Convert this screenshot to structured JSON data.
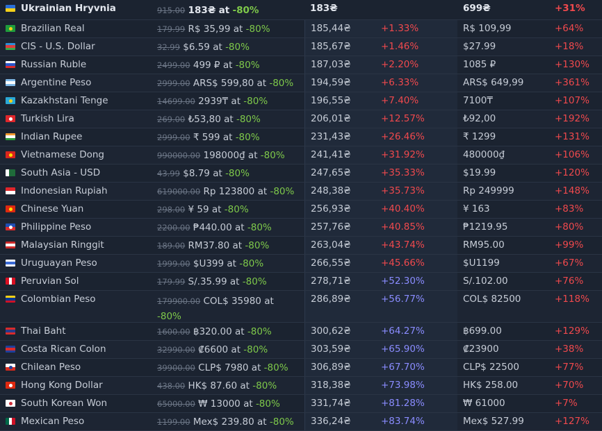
{
  "header": {
    "country": "Ukrainian Hryvnia",
    "flag": {
      "type": "h2",
      "c1": "#2a6fd6",
      "c2": "#f5d11a"
    },
    "orig": "915.00",
    "price": "183₴",
    "at": "at",
    "disc": "-80%",
    "conv": "183₴",
    "diff": "",
    "price2": "699₴",
    "diff2": "+31%"
  },
  "rows": [
    {
      "country": "Brazilian Real",
      "flag": {
        "type": "h2",
        "c1": "#1f9c3c",
        "c2": "#1f9c3c",
        "dot": "#f2d21b"
      },
      "orig": "179.99",
      "price": "R$ 35,99",
      "at": "at",
      "disc": "-80%",
      "conv": "185,44₴",
      "diff": "+1.33%",
      "diffColor": "red",
      "price2": "R$ 109,99",
      "diff2": "+64%"
    },
    {
      "country": "CIS - U.S. Dollar",
      "flag": {
        "type": "h3",
        "c1": "#2e8ed6",
        "c2": "#e03a3a",
        "c3": "#3aa64a"
      },
      "orig": "32.99",
      "price": "$6.59",
      "at": "at",
      "disc": "-80%",
      "conv": "185,67₴",
      "diff": "+1.46%",
      "diffColor": "red",
      "price2": "$27.99",
      "diff2": "+18%"
    },
    {
      "country": "Russian Ruble",
      "flag": {
        "type": "h3",
        "c1": "#ffffff",
        "c2": "#2a55c9",
        "c3": "#d92b2b"
      },
      "orig": "2499.00",
      "price": "499 ₽",
      "at": "at",
      "disc": "-80%",
      "conv": "187,03₴",
      "diff": "+2.20%",
      "diffColor": "red",
      "price2": "1085 ₽",
      "diff2": "+130%"
    },
    {
      "country": "Argentine Peso",
      "flag": {
        "type": "h3",
        "c1": "#7fb8e6",
        "c2": "#ffffff",
        "c3": "#7fb8e6"
      },
      "orig": "2999.00",
      "price": "ARS$ 599,80",
      "at": "at",
      "disc": "-80%",
      "conv": "194,59₴",
      "diff": "+6.33%",
      "diffColor": "red",
      "price2": "ARS$ 649,99",
      "diff2": "+361%"
    },
    {
      "country": "Kazakhstani Tenge",
      "flag": {
        "type": "h2",
        "c1": "#2aa8d6",
        "c2": "#2aa8d6",
        "dot": "#f2d21b"
      },
      "orig": "14699.00",
      "price": "2939₸",
      "at": "at",
      "disc": "-80%",
      "conv": "196,55₴",
      "diff": "+7.40%",
      "diffColor": "red",
      "price2": "7100₸",
      "diff2": "+107%"
    },
    {
      "country": "Turkish Lira",
      "flag": {
        "type": "h2",
        "c1": "#e0262b",
        "c2": "#e0262b",
        "dot": "#ffffff"
      },
      "orig": "269.00",
      "price": "₺53,80",
      "at": "at",
      "disc": "-80%",
      "conv": "206,01₴",
      "diff": "+12.57%",
      "diffColor": "red",
      "price2": "₺92,00",
      "diff2": "+192%"
    },
    {
      "country": "Indian Rupee",
      "flag": {
        "type": "h3",
        "c1": "#f29a2e",
        "c2": "#ffffff",
        "c3": "#2a9a3a"
      },
      "orig": "2999.00",
      "price": "₹ 599",
      "at": "at",
      "disc": "-80%",
      "conv": "231,43₴",
      "diff": "+26.46%",
      "diffColor": "red",
      "price2": "₹ 1299",
      "diff2": "+131%"
    },
    {
      "country": "Vietnamese Dong",
      "flag": {
        "type": "h2",
        "c1": "#da251d",
        "c2": "#da251d",
        "dot": "#ffdd00"
      },
      "orig": "990000.00",
      "price": "198000₫",
      "at": "at",
      "disc": "-80%",
      "conv": "241,41₴",
      "diff": "+31.92%",
      "diffColor": "red",
      "price2": "480000₫",
      "diff2": "+106%"
    },
    {
      "country": "South Asia - USD",
      "flag": {
        "type": "v3",
        "c1": "#ffffff",
        "c2": "#1f6b3a",
        "c3": "#1f6b3a"
      },
      "orig": "43.99",
      "price": "$8.79",
      "at": "at",
      "disc": "-80%",
      "conv": "247,65₴",
      "diff": "+35.33%",
      "diffColor": "red",
      "price2": "$19.99",
      "diff2": "+120%"
    },
    {
      "country": "Indonesian Rupiah",
      "flag": {
        "type": "h2",
        "c1": "#e0262b",
        "c2": "#ffffff"
      },
      "orig": "619000.00",
      "price": "Rp 123800",
      "at": "at",
      "disc": "-80%",
      "conv": "248,38₴",
      "diff": "+35.73%",
      "diffColor": "red",
      "price2": "Rp 249999",
      "diff2": "+148%"
    },
    {
      "country": "Chinese Yuan",
      "flag": {
        "type": "h2",
        "c1": "#de2910",
        "c2": "#de2910",
        "dot": "#ffde00"
      },
      "orig": "298.00",
      "price": "¥ 59",
      "at": "at",
      "disc": "-80%",
      "conv": "256,93₴",
      "diff": "+40.40%",
      "diffColor": "red",
      "price2": "¥ 163",
      "diff2": "+83%"
    },
    {
      "country": "Philippine Peso",
      "flag": {
        "type": "h2",
        "c1": "#1f4fb5",
        "c2": "#d92b2b",
        "dot": "#ffffff"
      },
      "orig": "2200.00",
      "price": "₱440.00",
      "at": "at",
      "disc": "-80%",
      "conv": "257,76₴",
      "diff": "+40.85%",
      "diffColor": "red",
      "price2": "₱1219.95",
      "diff2": "+80%"
    },
    {
      "country": "Malaysian Ringgit",
      "flag": {
        "type": "h3",
        "c1": "#cc2a2a",
        "c2": "#ffffff",
        "c3": "#cc2a2a"
      },
      "orig": "189.00",
      "price": "RM37.80",
      "at": "at",
      "disc": "-80%",
      "conv": "263,04₴",
      "diff": "+43.74%",
      "diffColor": "red",
      "price2": "RM95.00",
      "diff2": "+99%"
    },
    {
      "country": "Uruguayan Peso",
      "flag": {
        "type": "h3",
        "c1": "#ffffff",
        "c2": "#3a6ad6",
        "c3": "#ffffff"
      },
      "orig": "1999.00",
      "price": "$U399",
      "at": "at",
      "disc": "-80%",
      "conv": "266,55₴",
      "diff": "+45.66%",
      "diffColor": "red",
      "price2": "$U1199",
      "diff2": "+67%"
    },
    {
      "country": "Peruvian Sol",
      "flag": {
        "type": "v3",
        "c1": "#d91023",
        "c2": "#ffffff",
        "c3": "#d91023"
      },
      "orig": "179.99",
      "price": "S/.35.99",
      "at": "at",
      "disc": "-80%",
      "conv": "278,71₴",
      "diff": "+52.30%",
      "diffColor": "blue",
      "price2": "S/.102.00",
      "diff2": "+76%"
    },
    {
      "country": "Colombian Peso",
      "flag": {
        "type": "h3",
        "c1": "#fcd116",
        "c2": "#003893",
        "c3": "#ce1126"
      },
      "orig": "179900.00",
      "price": "COL$ 35980",
      "at": "at",
      "disc": "-80%",
      "conv": "286,89₴",
      "diff": "+56.77%",
      "diffColor": "blue",
      "price2": "COL$ 82500",
      "diff2": "+118%"
    },
    {
      "country": "Thai Baht",
      "flag": {
        "type": "h3",
        "c1": "#d92b2b",
        "c2": "#2a3a8a",
        "c3": "#d92b2b"
      },
      "orig": "1600.00",
      "price": "฿320.00",
      "at": "at",
      "disc": "-80%",
      "conv": "300,62₴",
      "diff": "+64.27%",
      "diffColor": "blue",
      "price2": "฿699.00",
      "diff2": "+129%"
    },
    {
      "country": "Costa Rican Colon",
      "flag": {
        "type": "h3",
        "c1": "#1f3f9a",
        "c2": "#d92b2b",
        "c3": "#1f3f9a"
      },
      "orig": "32990.00",
      "price": "₡6600",
      "at": "at",
      "disc": "-80%",
      "conv": "303,59₴",
      "diff": "+65.90%",
      "diffColor": "blue",
      "price2": "₡23900",
      "diff2": "+38%"
    },
    {
      "country": "Chilean Peso",
      "flag": {
        "type": "h2",
        "c1": "#ffffff",
        "c2": "#d52b1e",
        "dot": "#1f3f9a"
      },
      "orig": "39900.00",
      "price": "CLP$ 7980",
      "at": "at",
      "disc": "-80%",
      "conv": "306,89₴",
      "diff": "+67.70%",
      "diffColor": "blue",
      "price2": "CLP$ 22500",
      "diff2": "+77%"
    },
    {
      "country": "Hong Kong Dollar",
      "flag": {
        "type": "h2",
        "c1": "#de2910",
        "c2": "#de2910",
        "dot": "#ffffff"
      },
      "orig": "438.00",
      "price": "HK$ 87.60",
      "at": "at",
      "disc": "-80%",
      "conv": "318,38₴",
      "diff": "+73.98%",
      "diffColor": "blue",
      "price2": "HK$ 258.00",
      "diff2": "+70%"
    },
    {
      "country": "South Korean Won",
      "flag": {
        "type": "h2",
        "c1": "#ffffff",
        "c2": "#ffffff",
        "dot": "#cd2e3a"
      },
      "orig": "65000.00",
      "price": "₩ 13000",
      "at": "at",
      "disc": "-80%",
      "conv": "331,74₴",
      "diff": "+81.28%",
      "diffColor": "blue",
      "price2": "₩ 61000",
      "diff2": "+7%"
    },
    {
      "country": "Mexican Peso",
      "flag": {
        "type": "v3",
        "c1": "#006847",
        "c2": "#ffffff",
        "c3": "#ce1126"
      },
      "orig": "1199.00",
      "price": "Mex$ 239.80",
      "at": "at",
      "disc": "-80%",
      "conv": "336,24₴",
      "diff": "+83.74%",
      "diffColor": "blue",
      "price2": "Mex$ 527.99",
      "diff2": "+127%"
    }
  ]
}
